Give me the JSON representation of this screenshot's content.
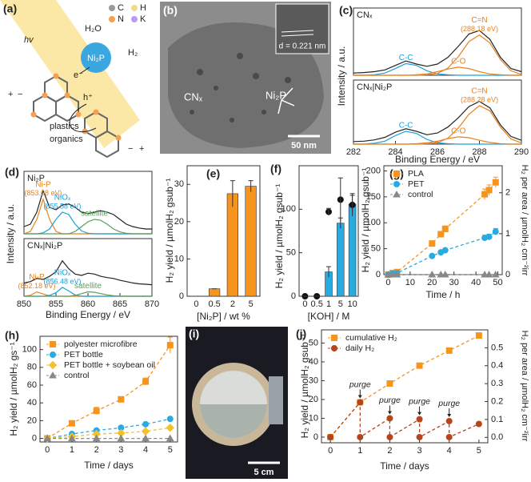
{
  "panel_a": {
    "label": "(a)",
    "atoms": [
      "C",
      "H",
      "N",
      "K"
    ],
    "light": "hv",
    "water": "H₂O",
    "catalyst": "Ni₂P",
    "product": "H₂",
    "electron": "e⁻",
    "hole": "h⁺",
    "substrates": [
      "plastics",
      "organics"
    ],
    "charges": [
      "+",
      "−",
      "−",
      "+"
    ]
  },
  "panel_b": {
    "label": "(b)",
    "inset": "d = 0.221 nm",
    "support": "CNₓ",
    "particle": "Ni₂P",
    "scale_bar": "50 nm"
  },
  "panel_i": {
    "label": "(i)",
    "scale_bar": "5 cm"
  },
  "chart_data": [
    {
      "type": "line",
      "panel": "(c)",
      "title": "CNₓ",
      "ylabel": "Intensity / a.u.",
      "legend": "peaks",
      "x": [
        282,
        282.5,
        283,
        283.5,
        284,
        284.5,
        285,
        285.5,
        286,
        286.5,
        287,
        287.5,
        288,
        288.5,
        289,
        289.5,
        290
      ],
      "xlim": [
        282,
        290
      ],
      "ylim": [
        0,
        1.5
      ],
      "series": [
        {
          "color": "#222222",
          "values": [
            0.05,
            0.06,
            0.08,
            0.12,
            0.22,
            0.32,
            0.25,
            0.2,
            0.25,
            0.4,
            0.65,
            0.92,
            1.0,
            0.8,
            0.4,
            0.15,
            0.08
          ]
        },
        {
          "name": "C-C",
          "color": "#1ba1dc",
          "values": [
            0,
            0,
            0.01,
            0.05,
            0.15,
            0.26,
            0.22,
            0.1,
            0.03,
            0.01,
            0,
            0,
            0,
            0,
            0,
            0,
            0
          ]
        },
        {
          "name": "C-O",
          "color": "#e8821e",
          "values": [
            0,
            0,
            0,
            0,
            0,
            0,
            0.01,
            0.03,
            0.08,
            0.14,
            0.18,
            0.15,
            0.08,
            0.03,
            0.01,
            0,
            0
          ]
        },
        {
          "name": "C=N",
          "color": "#e8821e",
          "peak_label": "(288.18 eV)",
          "values": [
            0,
            0,
            0,
            0,
            0,
            0,
            0,
            0.01,
            0.04,
            0.16,
            0.42,
            0.75,
            0.9,
            0.72,
            0.35,
            0.1,
            0.02
          ]
        }
      ]
    },
    {
      "type": "line",
      "title": "CNₓ|Ni₂P",
      "xlabel": "Binding Energy / eV",
      "legend": "peaks",
      "x": [
        282,
        282.5,
        283,
        283.5,
        284,
        284.5,
        285,
        285.5,
        286,
        286.5,
        287,
        287.5,
        288,
        288.5,
        289,
        289.5,
        290
      ],
      "xlim": [
        282,
        290
      ],
      "xticks": [
        282,
        284,
        286,
        288,
        290
      ],
      "ylim": [
        0,
        1.5
      ],
      "series": [
        {
          "color": "#222222",
          "values": [
            0.06,
            0.07,
            0.1,
            0.16,
            0.28,
            0.36,
            0.3,
            0.22,
            0.26,
            0.4,
            0.62,
            0.88,
            1.0,
            0.85,
            0.45,
            0.18,
            0.09
          ]
        },
        {
          "name": "C-C",
          "color": "#1ba1dc",
          "values": [
            0,
            0,
            0.02,
            0.07,
            0.2,
            0.3,
            0.25,
            0.11,
            0.03,
            0.01,
            0,
            0,
            0,
            0,
            0,
            0,
            0
          ]
        },
        {
          "name": "C-O",
          "color": "#e8821e",
          "values": [
            0,
            0,
            0,
            0,
            0,
            0,
            0.01,
            0.03,
            0.07,
            0.13,
            0.17,
            0.15,
            0.09,
            0.04,
            0.01,
            0,
            0
          ]
        },
        {
          "name": "C=N",
          "color": "#e8821e",
          "peak_label": "(288.28 eV)",
          "values": [
            0,
            0,
            0,
            0,
            0,
            0,
            0,
            0.01,
            0.03,
            0.14,
            0.38,
            0.7,
            0.9,
            0.78,
            0.4,
            0.12,
            0.03
          ]
        }
      ]
    },
    {
      "type": "line",
      "panel": "(d)",
      "title": "Ni₂P",
      "ylabel": "Intensity / a.u.",
      "legend": "peaks",
      "x": [
        850,
        851,
        852,
        853,
        854,
        855,
        856,
        857,
        858,
        859,
        860,
        861,
        862,
        863,
        864,
        865,
        866,
        867,
        868,
        869,
        870
      ],
      "xlim": [
        850,
        870
      ],
      "ylim": [
        0,
        1.3
      ],
      "series": [
        {
          "color": "#222222",
          "values": [
            0.15,
            0.2,
            0.45,
            0.9,
            0.55,
            0.5,
            0.6,
            0.62,
            0.55,
            0.45,
            0.42,
            0.45,
            0.48,
            0.45,
            0.4,
            0.3,
            0.2,
            0.15,
            0.12,
            0.1,
            0.1
          ]
        },
        {
          "name": "Ni-P",
          "color": "#e8821e",
          "peak_label": "(853.08 eV)",
          "values": [
            0,
            0.05,
            0.3,
            0.72,
            0.3,
            0.05,
            0,
            0,
            0,
            0,
            0,
            0,
            0,
            0,
            0,
            0,
            0,
            0,
            0,
            0,
            0
          ]
        },
        {
          "name": "NiOₓ",
          "color": "#1ba1dc",
          "peak_label": "(855.58 eV)",
          "values": [
            0,
            0,
            0,
            0.02,
            0.1,
            0.3,
            0.45,
            0.4,
            0.2,
            0.06,
            0.01,
            0,
            0,
            0,
            0,
            0,
            0,
            0,
            0,
            0,
            0
          ]
        },
        {
          "name": "satellite",
          "color": "#5aa05a",
          "values": [
            0,
            0,
            0,
            0,
            0,
            0,
            0,
            0,
            0.05,
            0.15,
            0.25,
            0.3,
            0.28,
            0.2,
            0.1,
            0.04,
            0.01,
            0,
            0,
            0,
            0
          ]
        }
      ]
    },
    {
      "type": "line",
      "title": "CNₓ|Ni₂P",
      "xlabel": "Binding Energy / eV",
      "legend": "peaks",
      "x": [
        850,
        851,
        852,
        853,
        854,
        855,
        856,
        857,
        858,
        859,
        860,
        861,
        862,
        863,
        864,
        865,
        866,
        867,
        868,
        869,
        870
      ],
      "xlim": [
        850,
        870
      ],
      "xticks": [
        850,
        855,
        860,
        865,
        870
      ],
      "ylim": [
        0,
        1.3
      ],
      "series": [
        {
          "color": "#222222",
          "values": [
            0.3,
            0.33,
            0.4,
            0.38,
            0.45,
            0.55,
            0.8,
            0.62,
            0.5,
            0.47,
            0.52,
            0.5,
            0.45,
            0.42,
            0.4,
            0.36,
            0.33,
            0.3,
            0.28,
            0.27,
            0.26
          ]
        },
        {
          "name": "Ni-P",
          "color": "#e8821e",
          "peak_label": "(852.18 eV)",
          "values": [
            0,
            0.02,
            0.1,
            0.05,
            0.01,
            0,
            0,
            0,
            0,
            0,
            0,
            0,
            0,
            0,
            0,
            0,
            0,
            0,
            0,
            0,
            0
          ]
        },
        {
          "name": "NiOₓ",
          "color": "#1ba1dc",
          "peak_label": "(856.48 eV)",
          "values": [
            0,
            0,
            0,
            0,
            0.02,
            0.08,
            0.2,
            0.12,
            0.03,
            0,
            0,
            0,
            0,
            0,
            0,
            0,
            0,
            0,
            0,
            0,
            0
          ]
        },
        {
          "name": "satellite",
          "color": "#5aa05a",
          "values": [
            0,
            0,
            0,
            0,
            0,
            0,
            0,
            0,
            0.02,
            0.06,
            0.1,
            0.09,
            0.06,
            0.03,
            0.01,
            0,
            0,
            0,
            0,
            0,
            0
          ]
        }
      ]
    },
    {
      "type": "bar",
      "panel": "(e)",
      "xlabel": "[Ni₂P] / wt %",
      "ylabel": "H₂ yield / µmolH₂ gsub⁻¹",
      "categories": [
        "0",
        "0.5",
        "2",
        "5"
      ],
      "ylim": [
        0,
        35
      ],
      "yticks": [
        0,
        10,
        20,
        30
      ],
      "series": [
        {
          "color": "#f7941d",
          "values": [
            0,
            2,
            27.5,
            29.5
          ],
          "errors": [
            0,
            0,
            3.5,
            1.5
          ]
        }
      ]
    },
    {
      "type": "bar",
      "panel": "(f)",
      "xlabel": "[KOH] / M",
      "ylabel": "H₂ yield / µmolH₂ gsub⁻¹",
      "categories": [
        "0",
        "0.5",
        "1",
        "5",
        "10"
      ],
      "ylim": [
        0,
        150
      ],
      "yticks": [
        0,
        50,
        100
      ],
      "series": [
        {
          "color": "#29abe2",
          "values": [
            0,
            0,
            28,
            84,
            106
          ],
          "errors": [
            0,
            0,
            6,
            6,
            10
          ]
        },
        {
          "color": "#111111",
          "marker": "circle",
          "values": [
            0,
            0,
            97,
            111,
            105
          ],
          "errors": [
            0,
            0,
            4,
            25,
            13
          ]
        }
      ]
    },
    {
      "type": "line",
      "panel": "(g)",
      "xlabel": "Time / h",
      "ylabel": "H₂ yield / µmolH₂ gsub⁻¹",
      "y2label": "H₂ per area / µmolH₂ cm⁻²irr",
      "dashed": true,
      "legend": "upper left",
      "x": [
        0,
        2,
        4,
        20,
        24,
        26,
        44,
        46,
        49
      ],
      "xlim": [
        -2,
        52
      ],
      "xticks": [
        0,
        10,
        20,
        30,
        40,
        50
      ],
      "ylim": [
        0,
        210
      ],
      "yticks": [
        0,
        50,
        100,
        150,
        200
      ],
      "y2lim": [
        0,
        2.66
      ],
      "y2ticks": [
        0,
        1,
        2
      ],
      "series": [
        {
          "name": "PLA",
          "color": "#f7941d",
          "marker": "square",
          "values": [
            0,
            3,
            5,
            60,
            78,
            88,
            155,
            163,
            178
          ],
          "errors": [
            0,
            1,
            1,
            5,
            5,
            6,
            10,
            10,
            10
          ]
        },
        {
          "name": "PET",
          "color": "#29abe2",
          "marker": "circle",
          "values": [
            0,
            2,
            3,
            36,
            43,
            47,
            71,
            73,
            83
          ],
          "errors": [
            0,
            1,
            1,
            3,
            3,
            3,
            5,
            5,
            6
          ]
        },
        {
          "name": "control",
          "color": "#888888",
          "marker": "triangle",
          "values": [
            0,
            0,
            0,
            0,
            0,
            0,
            0,
            0,
            0
          ]
        }
      ]
    },
    {
      "type": "line",
      "panel": "(h)",
      "xlabel": "Time / days",
      "ylabel": "H₂ yield / µmolH₂ gs⁻¹",
      "dashed": true,
      "legend": "upper left",
      "x": [
        0,
        1,
        2,
        3,
        4,
        5
      ],
      "xlim": [
        -0.3,
        5.3
      ],
      "xticks": [
        0,
        1,
        2,
        3,
        4,
        5
      ],
      "ylim": [
        -4,
        115
      ],
      "yticks": [
        0,
        20,
        40,
        60,
        80,
        100
      ],
      "series": [
        {
          "name": "polyester microfibre",
          "color": "#f7941d",
          "marker": "square",
          "values": [
            0,
            17,
            31,
            44,
            64,
            105
          ],
          "errors": [
            0,
            2,
            4,
            3,
            4,
            9
          ]
        },
        {
          "name": "PET bottle",
          "color": "#29abe2",
          "marker": "circle",
          "values": [
            0,
            5,
            9,
            12,
            16,
            22
          ],
          "errors": [
            0,
            1,
            1,
            1,
            1,
            1
          ]
        },
        {
          "name": "PET bottle + soybean oil",
          "color": "#f2c12e",
          "marker": "diamond",
          "values": [
            0,
            2,
            5,
            6,
            8,
            12
          ],
          "errors": [
            0,
            0.5,
            1,
            1,
            1,
            1.5
          ]
        },
        {
          "name": "control",
          "color": "#888888",
          "marker": "triangle",
          "values": [
            0,
            0,
            0,
            0,
            0,
            0
          ]
        }
      ]
    },
    {
      "type": "line",
      "panel": "(j)",
      "xlabel": "Time / days",
      "ylabel": "H₂ yield / µmolH₂ gsub⁻¹",
      "y2label": "H₂ per area / µmolH₂ cm⁻²irr",
      "dashed": true,
      "legend": "upper left",
      "xlim": [
        -0.3,
        5.3
      ],
      "xticks": [
        0,
        1,
        2,
        3,
        4,
        5
      ],
      "ylim": [
        -3,
        57
      ],
      "yticks": [
        0,
        10,
        20,
        30,
        40,
        50
      ],
      "y2lim": [
        -0.03,
        0.6
      ],
      "y2ticks": [
        {
          "value": 0,
          "label": "0.0"
        },
        0.1,
        0.2,
        0.3,
        0.4,
        0.5
      ],
      "annotations": [
        "purge",
        "purge",
        "purge",
        "purge"
      ],
      "series": [
        {
          "name": "cumulative H₂",
          "color": "#f7941d",
          "marker": "square",
          "x": [
            0,
            1,
            2,
            3,
            4,
            5
          ],
          "values": [
            0,
            18.5,
            28.5,
            38,
            46,
            54
          ]
        },
        {
          "name": "daily H₂",
          "color": "#b5451b",
          "marker": "circle",
          "x": [
            0,
            1,
            1,
            2,
            2,
            3,
            3,
            4,
            4,
            5
          ],
          "values": [
            0,
            18.5,
            0,
            10,
            0,
            9.5,
            0,
            8.5,
            0,
            7
          ]
        }
      ]
    }
  ]
}
